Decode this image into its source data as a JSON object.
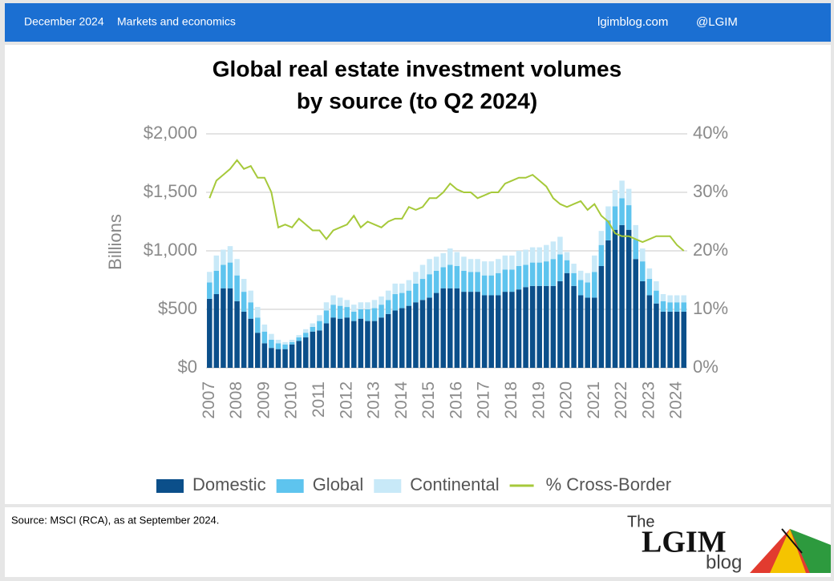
{
  "header": {
    "date": "December 2024",
    "section": "Markets and economics",
    "site": "lgimblog.com",
    "handle": "@LGIM"
  },
  "footer": {
    "source": "Source: MSCI (RCA), as at September 2024.",
    "logo_the": "The",
    "logo_name": "LGIM",
    "logo_blog": "blog"
  },
  "chart_data": {
    "type": "bar",
    "stacked": true,
    "title": "Global real estate investment volumes",
    "subtitle": "by source (to Q2 2024)",
    "ylabel": "Billions",
    "categories": [
      "2007",
      null,
      null,
      null,
      "2008",
      null,
      null,
      null,
      "2009",
      null,
      null,
      null,
      "2010",
      null,
      null,
      null,
      "2011",
      null,
      null,
      null,
      "2012",
      null,
      null,
      null,
      "2013",
      null,
      null,
      null,
      "2014",
      null,
      null,
      null,
      "2015",
      null,
      null,
      null,
      "2016",
      null,
      null,
      null,
      "2017",
      null,
      null,
      null,
      "2018",
      null,
      null,
      null,
      "2019",
      null,
      null,
      null,
      "2020",
      null,
      null,
      null,
      "2021",
      null,
      null,
      null,
      "2022",
      null,
      null,
      null,
      "2023",
      null,
      null,
      null,
      "2024",
      null
    ],
    "ylim": [
      0,
      2000
    ],
    "yticks": [
      {
        "value": 0,
        "label": "$0"
      },
      {
        "value": 500,
        "label": "$500"
      },
      {
        "value": 1000,
        "label": "$1,000"
      },
      {
        "value": 1500,
        "label": "$1,500"
      },
      {
        "value": 2000,
        "label": "$2,000"
      }
    ],
    "y2lim": [
      0,
      40
    ],
    "y2ticks": [
      {
        "value": 0,
        "label": "0%"
      },
      {
        "value": 10,
        "label": "10%"
      },
      {
        "value": 20,
        "label": "20%"
      },
      {
        "value": 30,
        "label": "30%"
      },
      {
        "value": 40,
        "label": "40%"
      }
    ],
    "grid": true,
    "legend": "bottom",
    "series": [
      {
        "name": "Domestic",
        "color": "#0b4f8a",
        "values": [
          590,
          630,
          680,
          680,
          570,
          480,
          420,
          300,
          210,
          170,
          160,
          160,
          200,
          230,
          260,
          310,
          320,
          380,
          430,
          420,
          430,
          400,
          420,
          400,
          400,
          430,
          460,
          490,
          510,
          530,
          560,
          580,
          600,
          640,
          680,
          680,
          680,
          650,
          650,
          650,
          620,
          620,
          620,
          650,
          650,
          670,
          690,
          700,
          700,
          700,
          700,
          740,
          810,
          700,
          620,
          600,
          600,
          870,
          1090,
          1180,
          1220,
          1180,
          930,
          740,
          620,
          550,
          480,
          480,
          480,
          480
        ]
      },
      {
        "name": "Global",
        "color": "#5ec4ee",
        "values": [
          140,
          200,
          200,
          220,
          220,
          170,
          140,
          130,
          100,
          70,
          50,
          40,
          20,
          30,
          40,
          40,
          80,
          110,
          110,
          110,
          90,
          80,
          80,
          100,
          110,
          110,
          120,
          140,
          130,
          130,
          160,
          180,
          200,
          190,
          180,
          200,
          190,
          180,
          170,
          170,
          170,
          170,
          190,
          190,
          190,
          200,
          190,
          200,
          200,
          210,
          230,
          230,
          110,
          110,
          130,
          130,
          220,
          180,
          170,
          200,
          230,
          210,
          170,
          170,
          140,
          110,
          90,
          80,
          80,
          80
        ]
      },
      {
        "name": "Continental",
        "color": "#c8e9f8",
        "values": [
          90,
          130,
          130,
          140,
          140,
          110,
          100,
          90,
          60,
          50,
          30,
          20,
          20,
          20,
          30,
          30,
          50,
          70,
          80,
          70,
          60,
          60,
          60,
          60,
          70,
          70,
          80,
          90,
          80,
          90,
          100,
          120,
          130,
          120,
          120,
          140,
          120,
          120,
          110,
          110,
          120,
          120,
          120,
          120,
          120,
          130,
          130,
          130,
          130,
          140,
          150,
          150,
          70,
          80,
          80,
          80,
          140,
          120,
          120,
          140,
          150,
          140,
          120,
          110,
          90,
          80,
          60,
          60,
          60,
          60
        ]
      },
      {
        "name": "% Cross-Border",
        "color": "#a6c93a",
        "axis": "y2",
        "values": [
          29,
          32,
          33,
          34,
          35.5,
          34,
          34.5,
          32.5,
          32.5,
          30,
          24,
          24.5,
          24,
          25.5,
          24.5,
          23.5,
          23.5,
          22,
          23.5,
          24,
          24.5,
          26,
          24,
          25,
          24.5,
          24,
          25,
          25.5,
          25.5,
          27.5,
          27,
          27.5,
          29,
          29,
          30,
          31.5,
          30.5,
          30,
          30,
          29,
          29.5,
          30,
          30,
          31.5,
          32,
          32.5,
          32.5,
          33,
          32,
          31,
          29,
          28,
          27.5,
          28,
          28.5,
          27,
          28,
          26,
          25,
          23,
          22.5,
          22.5,
          22,
          21.5,
          22,
          22.5,
          22.5,
          22.5,
          21,
          20
        ]
      }
    ]
  }
}
